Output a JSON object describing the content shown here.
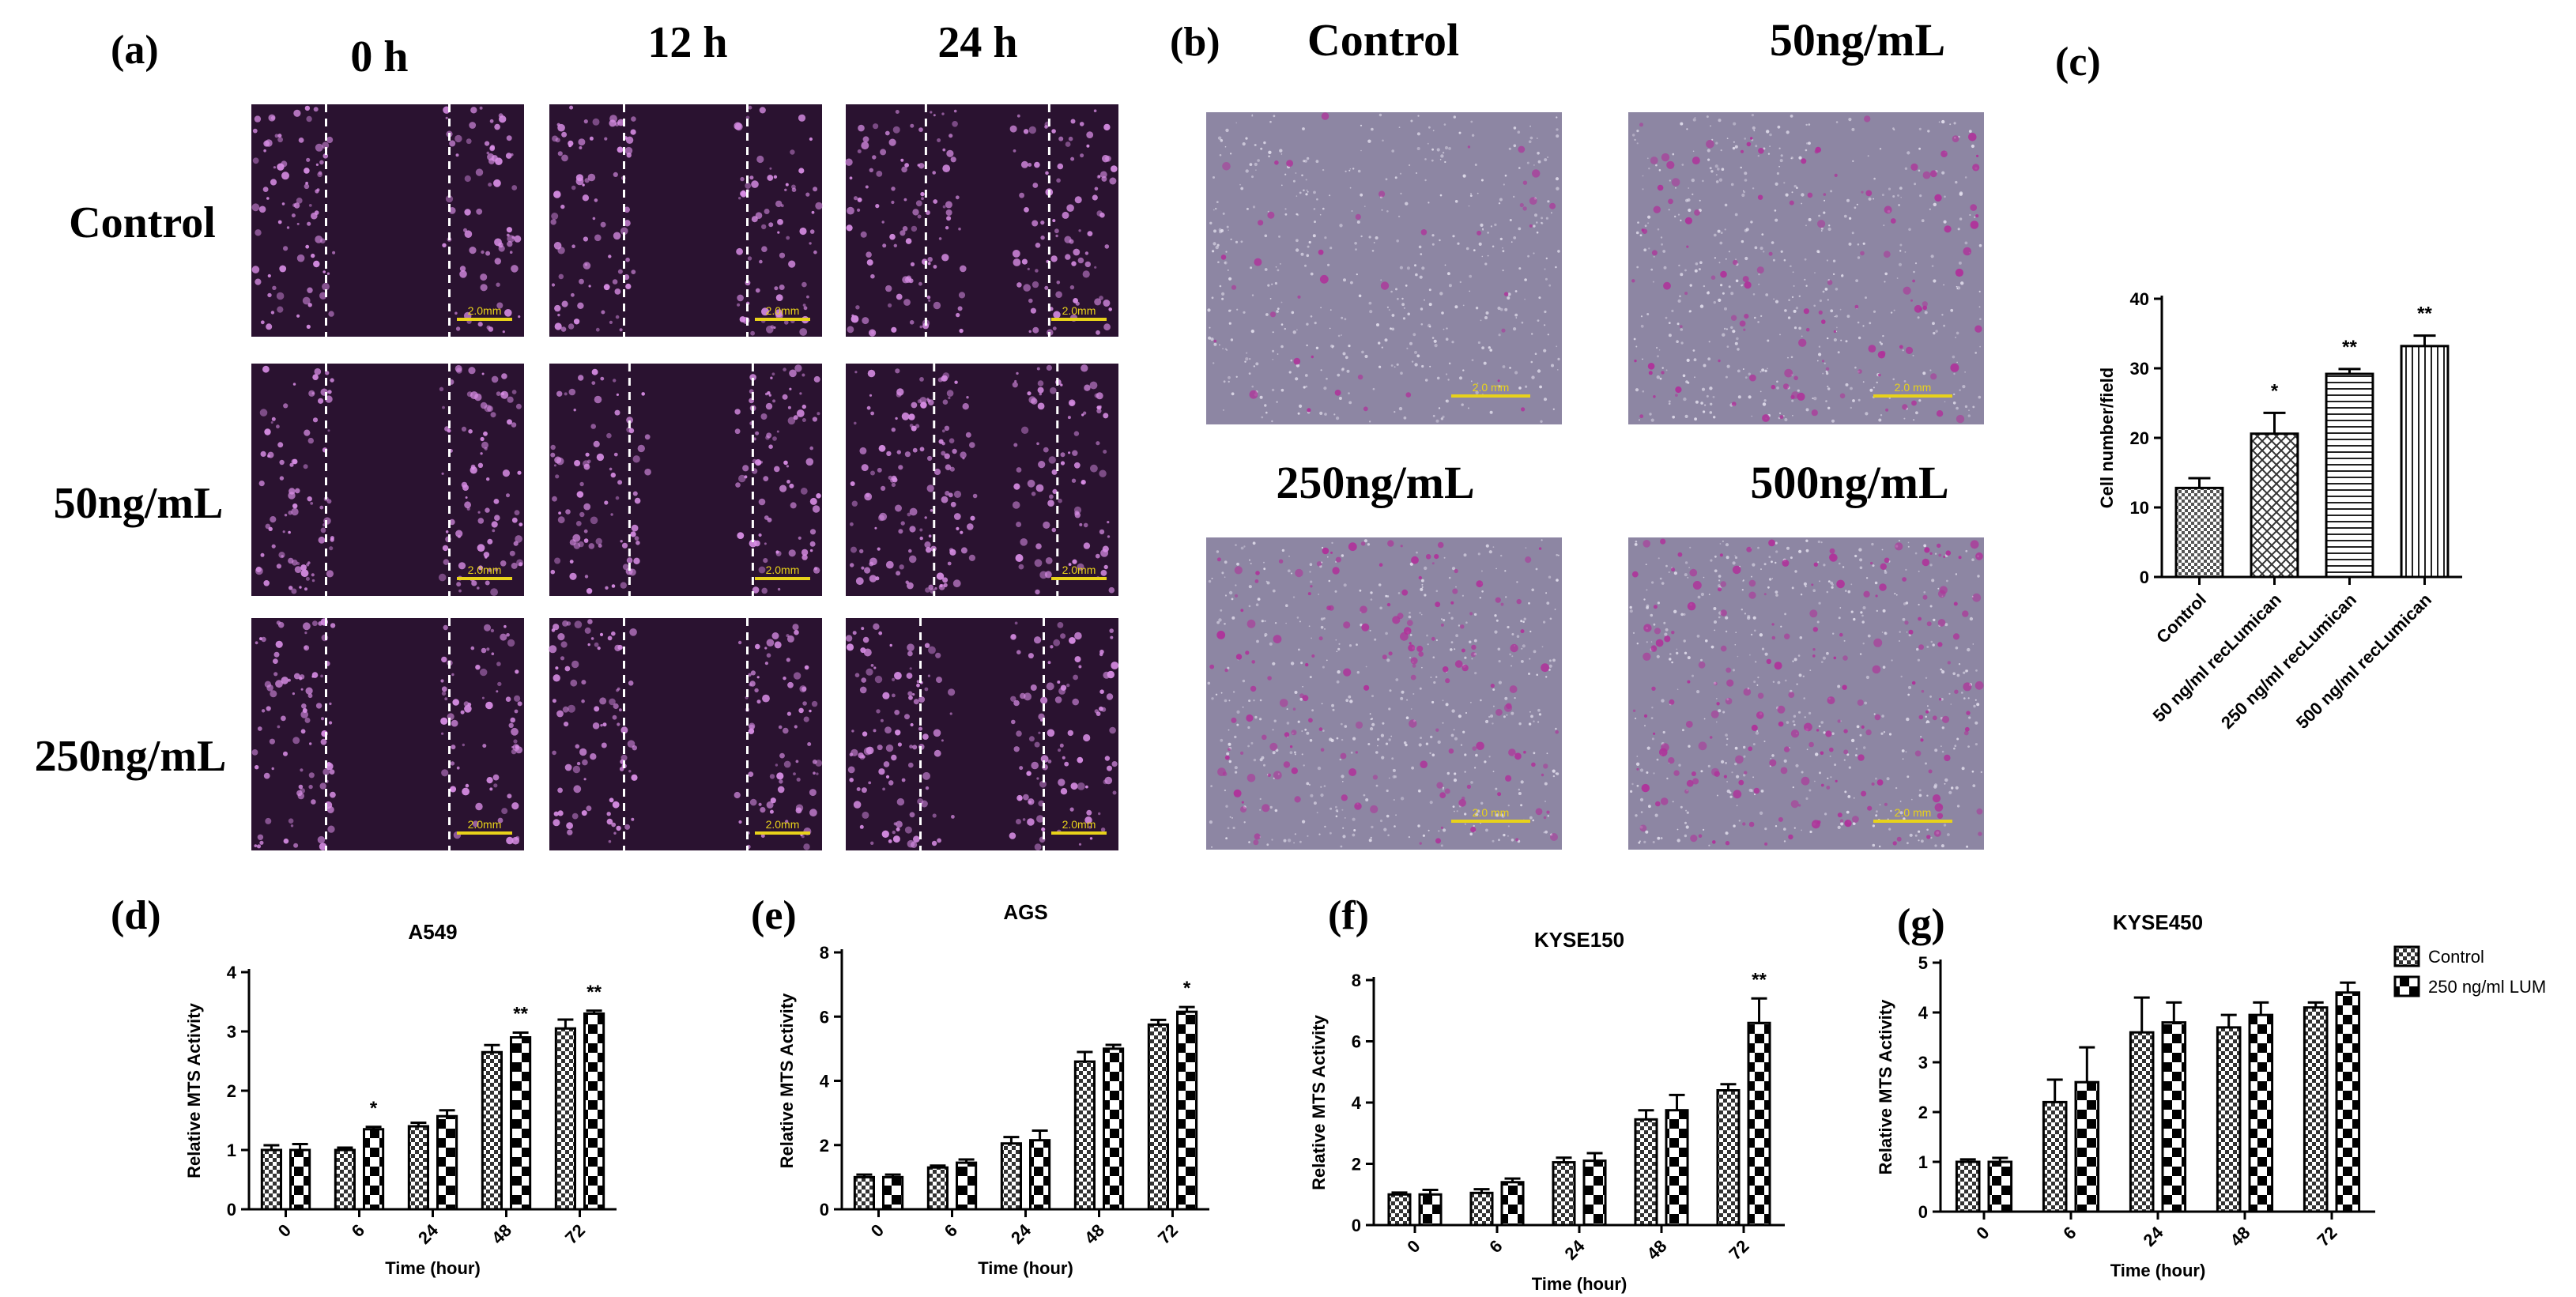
{
  "panel_a": {
    "letter": "(a)",
    "columns": [
      "0 h",
      "12 h",
      "24 h"
    ],
    "rows": [
      "Control",
      "50ng/mL",
      "250ng/mL"
    ],
    "scale_label": "2.0mm"
  },
  "panel_b": {
    "letter": "(b)",
    "labels": [
      "Control",
      "50ng/mL",
      "250ng/mL",
      "500ng/mL"
    ],
    "scale_label": "2.0 mm"
  },
  "colors": {
    "micro_dark": "#2a1230",
    "micro_cell": "#d98ee6",
    "invasion_bg": "#8d86a3",
    "invasion_cell": "#b0309a",
    "scalebar": "#e8d21a"
  },
  "chart_data": [
    {
      "id": "c",
      "panel_letter": "(c)",
      "type": "bar",
      "title": "",
      "xlabel": "",
      "ylabel": "Cell number/field",
      "ylim": [
        0,
        40
      ],
      "yticks": [
        0,
        10,
        20,
        30,
        40
      ],
      "categories": [
        "Control",
        "50 ng/ml recLumican",
        "250 ng/ml recLumican",
        "500 ng/ml recLumican"
      ],
      "series": [
        {
          "values": [
            12.8,
            20.6,
            29.2,
            33.2
          ],
          "errors": [
            1.4,
            3.0,
            0.7,
            1.5
          ],
          "significance": [
            "",
            "*",
            "**",
            "**"
          ]
        }
      ]
    },
    {
      "id": "d",
      "panel_letter": "(d)",
      "type": "bar",
      "title": "A549",
      "xlabel": "Time (hour)",
      "ylabel": "Relative MTS Activity",
      "ylim": [
        0,
        4
      ],
      "yticks": [
        0,
        1,
        2,
        3,
        4
      ],
      "categories": [
        "0",
        "6",
        "24",
        "48",
        "72"
      ],
      "series": [
        {
          "name": "Control",
          "values": [
            1.0,
            1.0,
            1.4,
            2.65,
            3.05
          ],
          "errors": [
            0.08,
            0.04,
            0.06,
            0.12,
            0.15
          ]
        },
        {
          "name": "250 ng/ml LUM",
          "values": [
            1.0,
            1.35,
            1.57,
            2.9,
            3.3
          ],
          "errors": [
            0.1,
            0.04,
            0.1,
            0.08,
            0.05
          ]
        }
      ],
      "significance": [
        "",
        "*",
        "",
        "**",
        "**"
      ]
    },
    {
      "id": "e",
      "panel_letter": "(e)",
      "type": "bar",
      "title": "AGS",
      "xlabel": "Time (hour)",
      "ylabel": "Relative MTS Activity",
      "ylim": [
        0,
        8
      ],
      "yticks": [
        0,
        2,
        4,
        6,
        8
      ],
      "categories": [
        "0",
        "6",
        "24",
        "48",
        "72"
      ],
      "series": [
        {
          "name": "Control",
          "values": [
            1.0,
            1.3,
            2.05,
            4.6,
            5.75
          ],
          "errors": [
            0.08,
            0.06,
            0.2,
            0.3,
            0.15
          ]
        },
        {
          "name": "250 ng/ml LUM",
          "values": [
            1.0,
            1.45,
            2.15,
            5.0,
            6.15
          ],
          "errors": [
            0.08,
            0.1,
            0.3,
            0.12,
            0.15
          ]
        }
      ],
      "significance": [
        "",
        "",
        "",
        "",
        "*"
      ]
    },
    {
      "id": "f",
      "panel_letter": "(f)",
      "type": "bar",
      "title": "KYSE150",
      "xlabel": "Time (hour)",
      "ylabel": "Relative MTS Activity",
      "ylim": [
        0,
        8
      ],
      "yticks": [
        0,
        2,
        4,
        6,
        8
      ],
      "categories": [
        "0",
        "6",
        "24",
        "48",
        "72"
      ],
      "series": [
        {
          "name": "Control",
          "values": [
            1.0,
            1.05,
            2.05,
            3.45,
            4.4
          ],
          "errors": [
            0.06,
            0.12,
            0.15,
            0.3,
            0.2
          ]
        },
        {
          "name": "250 ng/ml LUM",
          "values": [
            1.0,
            1.4,
            2.1,
            3.75,
            6.6
          ],
          "errors": [
            0.15,
            0.12,
            0.25,
            0.5,
            0.8
          ]
        }
      ],
      "significance": [
        "",
        "",
        "",
        "",
        "**"
      ]
    },
    {
      "id": "g",
      "panel_letter": "(g)",
      "type": "bar",
      "title": "KYSE450",
      "xlabel": "Time (hour)",
      "ylabel": "Relative MTS Activity",
      "ylim": [
        0,
        5
      ],
      "yticks": [
        0,
        1,
        2,
        3,
        4,
        5
      ],
      "categories": [
        "0",
        "6",
        "24",
        "48",
        "72"
      ],
      "series": [
        {
          "name": "Control",
          "values": [
            1.0,
            2.2,
            3.6,
            3.7,
            4.1
          ],
          "errors": [
            0.05,
            0.45,
            0.7,
            0.25,
            0.1
          ]
        },
        {
          "name": "250 ng/ml LUM",
          "values": [
            1.0,
            2.6,
            3.8,
            3.95,
            4.4
          ],
          "errors": [
            0.08,
            0.7,
            0.4,
            0.25,
            0.2
          ]
        }
      ],
      "significance": [
        "",
        "",
        "",
        "",
        ""
      ],
      "legend": {
        "placement": "right",
        "entries": [
          "Control",
          "250 ng/ml LUM"
        ]
      }
    }
  ]
}
